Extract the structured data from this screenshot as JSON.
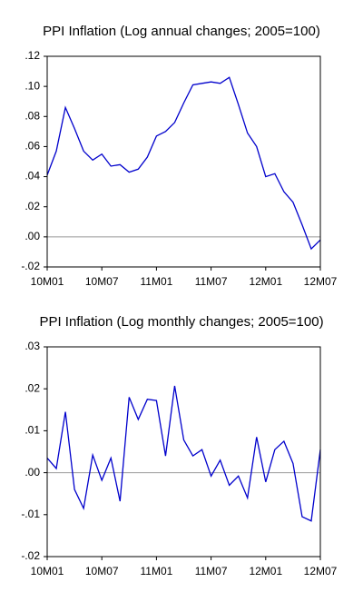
{
  "chart_data": [
    {
      "type": "line",
      "title": "PPI Inflation (Log annual changes; 2005=100)",
      "categories": [
        "10M01",
        null,
        null,
        null,
        null,
        null,
        "10M07",
        null,
        null,
        null,
        null,
        null,
        "11M01",
        null,
        null,
        null,
        null,
        null,
        "11M07",
        null,
        null,
        null,
        null,
        null,
        "12M01",
        null,
        null,
        null,
        null,
        null,
        "12M07"
      ],
      "series": [
        {
          "name": null,
          "color": "#0000cc",
          "values": [
            0.041,
            0.057,
            0.086,
            0.072,
            0.057,
            0.051,
            0.055,
            0.047,
            0.048,
            0.043,
            0.045,
            0.053,
            0.067,
            0.07,
            0.076,
            0.089,
            0.101,
            0.102,
            0.103,
            0.102,
            0.106,
            0.088,
            0.069,
            0.06,
            0.04,
            0.042,
            0.03,
            0.023,
            0.008,
            -0.008,
            -0.002
          ]
        }
      ],
      "ylim": [
        -0.02,
        0.12
      ],
      "yticks": [
        {
          "value": -0.02,
          "label": "-.02"
        },
        {
          "value": 0,
          "label": ".00"
        },
        {
          "value": 0.02,
          "label": ".02"
        },
        {
          "value": 0.04,
          "label": ".04"
        },
        {
          "value": 0.06,
          "label": ".06"
        },
        {
          "value": 0.08,
          "label": ".08"
        },
        {
          "value": 0.1,
          "label": ".10"
        },
        {
          "value": 0.12,
          "label": ".12"
        }
      ],
      "zero_line": true
    },
    {
      "type": "line",
      "title": "PPI Inflation (Log monthly changes; 2005=100)",
      "categories": [
        "10M01",
        null,
        null,
        null,
        null,
        null,
        "10M07",
        null,
        null,
        null,
        null,
        null,
        "11M01",
        null,
        null,
        null,
        null,
        null,
        "11M07",
        null,
        null,
        null,
        null,
        null,
        "12M01",
        null,
        null,
        null,
        null,
        null,
        "12M07"
      ],
      "series": [
        {
          "name": null,
          "color": "#0000cc",
          "values": [
            0.0035,
            0.001,
            0.0145,
            -0.004,
            -0.0085,
            0.0042,
            -0.0018,
            0.0035,
            -0.0068,
            0.018,
            0.0127,
            0.0175,
            0.0172,
            0.004,
            0.0207,
            0.0078,
            0.004,
            0.0055,
            -0.0008,
            0.003,
            -0.003,
            -0.0008,
            -0.006,
            0.0085,
            -0.0022,
            0.0055,
            0.0075,
            0.0022,
            -0.0105,
            -0.0115,
            0.0055
          ]
        }
      ],
      "ylim": [
        -0.02,
        0.03
      ],
      "yticks": [
        {
          "value": -0.02,
          "label": "-.02"
        },
        {
          "value": -0.01,
          "label": "-.01"
        },
        {
          "value": 0,
          "label": ".00"
        },
        {
          "value": 0.01,
          "label": ".01"
        },
        {
          "value": 0.02,
          "label": ".02"
        },
        {
          "value": 0.03,
          "label": ".03"
        }
      ],
      "zero_line": true
    }
  ]
}
